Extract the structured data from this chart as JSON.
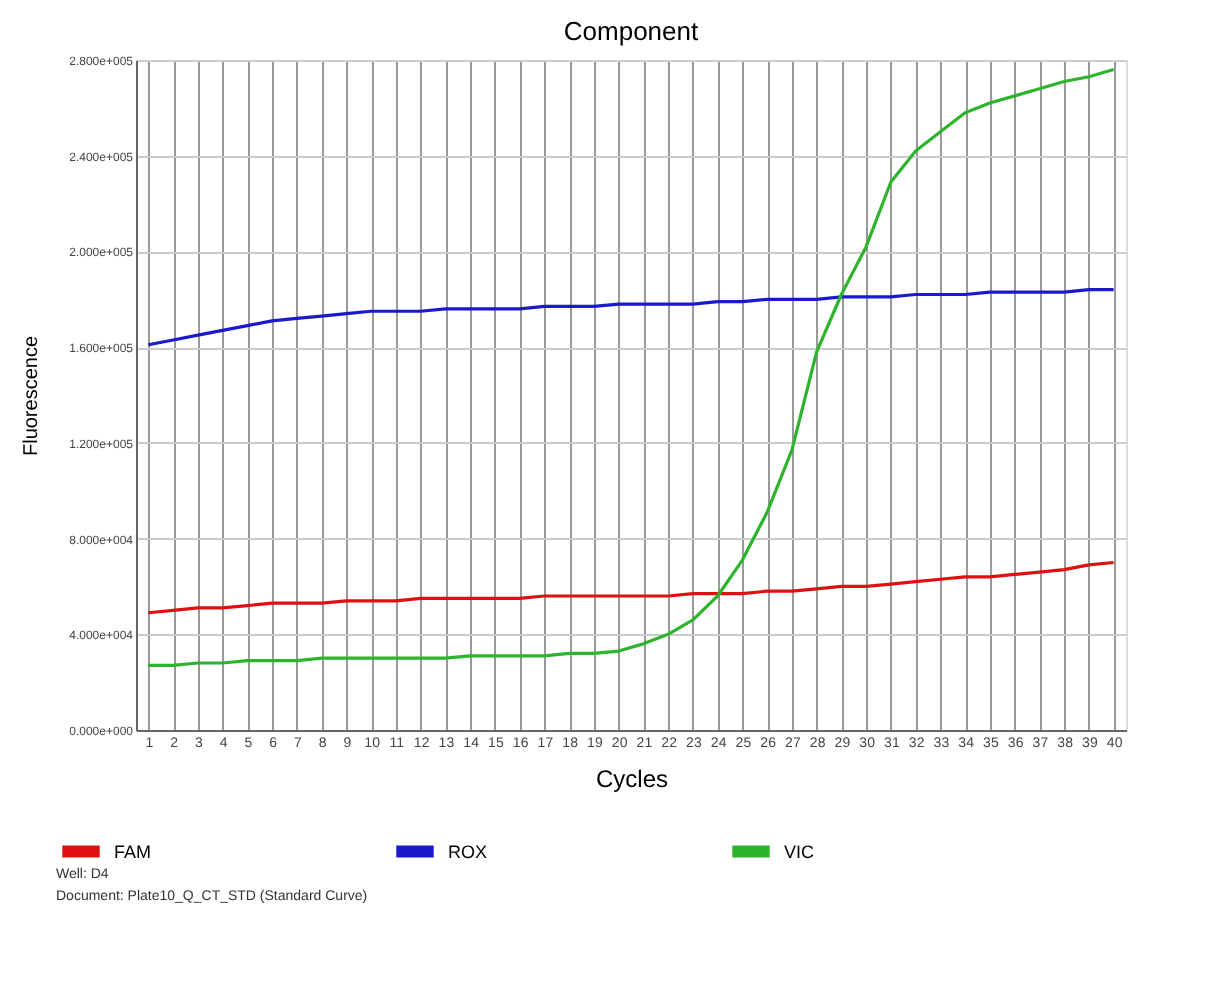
{
  "chart_data": {
    "type": "line",
    "title": "Component",
    "xlabel": "Cycles",
    "ylabel": "Fluorescence",
    "x": [
      1,
      2,
      3,
      4,
      5,
      6,
      7,
      8,
      9,
      10,
      11,
      12,
      13,
      14,
      15,
      16,
      17,
      18,
      19,
      20,
      21,
      22,
      23,
      24,
      25,
      26,
      27,
      28,
      29,
      30,
      31,
      32,
      33,
      34,
      35,
      36,
      37,
      38,
      39,
      40
    ],
    "xlim": [
      0.5,
      40.5
    ],
    "xticks": [
      1,
      2,
      3,
      4,
      5,
      6,
      7,
      8,
      9,
      10,
      11,
      12,
      13,
      14,
      15,
      16,
      17,
      18,
      19,
      20,
      21,
      22,
      23,
      24,
      25,
      26,
      27,
      28,
      29,
      30,
      31,
      32,
      33,
      34,
      35,
      36,
      37,
      38,
      39,
      40
    ],
    "ylim": [
      0,
      280000
    ],
    "yticks": [
      {
        "value": 0,
        "label": "0.000e+000"
      },
      {
        "value": 40000,
        "label": "4.000e+004"
      },
      {
        "value": 80000,
        "label": "8.000e+004"
      },
      {
        "value": 120000,
        "label": "1.200e+005"
      },
      {
        "value": 160000,
        "label": "1.600e+005"
      },
      {
        "value": 200000,
        "label": "2.000e+005"
      },
      {
        "value": 240000,
        "label": "2.400e+005"
      },
      {
        "value": 280000,
        "label": "2.800e+005"
      }
    ],
    "series": [
      {
        "name": "FAM",
        "color": "#e01010",
        "values": [
          49000,
          50000,
          51000,
          51000,
          52000,
          53000,
          53000,
          53000,
          54000,
          54000,
          54000,
          55000,
          55000,
          55000,
          55000,
          55000,
          56000,
          56000,
          56000,
          56000,
          56000,
          56000,
          57000,
          57000,
          57000,
          58000,
          58000,
          59000,
          60000,
          60000,
          61000,
          62000,
          63000,
          64000,
          64000,
          65000,
          66000,
          67000,
          69000,
          70000
        ]
      },
      {
        "name": "ROX",
        "color": "#1a1acc",
        "values": [
          161000,
          163000,
          165000,
          167000,
          169000,
          171000,
          172000,
          173000,
          174000,
          175000,
          175000,
          175000,
          176000,
          176000,
          176000,
          176000,
          177000,
          177000,
          177000,
          178000,
          178000,
          178000,
          178000,
          179000,
          179000,
          180000,
          180000,
          180000,
          181000,
          181000,
          181000,
          182000,
          182000,
          182000,
          183000,
          183000,
          183000,
          183000,
          184000,
          184000
        ]
      },
      {
        "name": "VIC",
        "color": "#2db42d",
        "values": [
          27000,
          27000,
          28000,
          28000,
          29000,
          29000,
          29000,
          30000,
          30000,
          30000,
          30000,
          30000,
          30000,
          31000,
          31000,
          31000,
          31000,
          32000,
          32000,
          33000,
          36000,
          40000,
          46000,
          56000,
          71000,
          91000,
          117000,
          158000,
          182000,
          202000,
          229000,
          242000,
          250000,
          258000,
          262000,
          265000,
          268000,
          271000,
          273000,
          276000
        ]
      }
    ],
    "grid": true,
    "legend": "bottom",
    "marker": "none",
    "line_style": "solid",
    "annotations": [
      "Well: D4",
      "Document: Plate10_Q_CT_STD (Standard Curve)"
    ]
  }
}
